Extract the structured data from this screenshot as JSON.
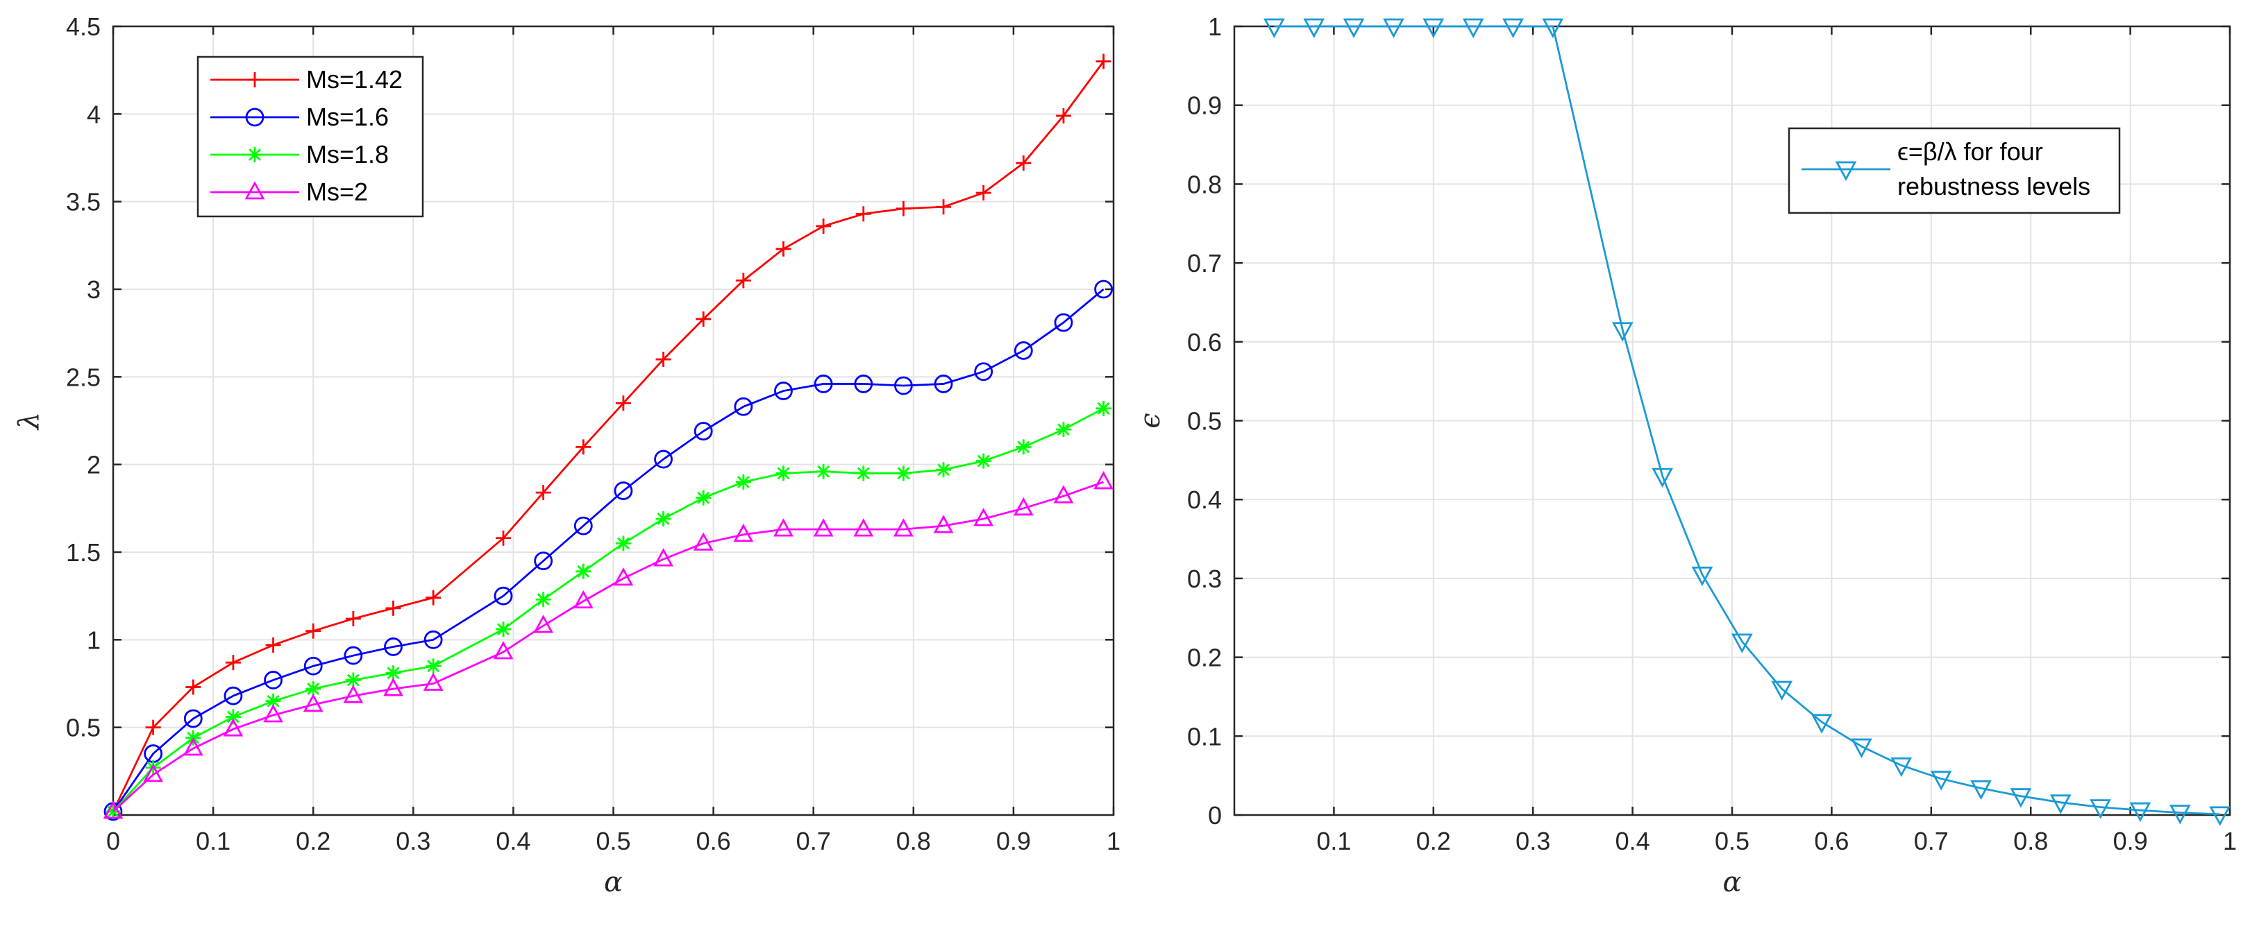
{
  "chart_data": [
    {
      "type": "line",
      "xlabel": "α",
      "ylabel": "λ",
      "xlim": [
        0,
        1
      ],
      "ylim": [
        0,
        4.5
      ],
      "xticks": [
        "0",
        "0.1",
        "0.2",
        "0.3",
        "0.4",
        "0.5",
        "0.6",
        "0.7",
        "0.8",
        "0.9",
        "1"
      ],
      "yticks": [
        "0.5",
        "1",
        "1.5",
        "2",
        "2.5",
        "3",
        "3.5",
        "4",
        "4.5"
      ],
      "grid": true,
      "legend_position": "top-left",
      "x": [
        0,
        0.04,
        0.08,
        0.12,
        0.16,
        0.2,
        0.24,
        0.28,
        0.32,
        0.39,
        0.43,
        0.47,
        0.51,
        0.55,
        0.59,
        0.63,
        0.67,
        0.71,
        0.75,
        0.79,
        0.83,
        0.87,
        0.91,
        0.95,
        0.99
      ],
      "series": [
        {
          "name": "Ms=1.42",
          "color": "#ff0000",
          "marker": "plus",
          "values": [
            0.02,
            0.5,
            0.73,
            0.87,
            0.97,
            1.05,
            1.12,
            1.18,
            1.24,
            1.58,
            1.84,
            2.1,
            2.35,
            2.6,
            2.83,
            3.05,
            3.23,
            3.36,
            3.43,
            3.46,
            3.47,
            3.55,
            3.72,
            3.99,
            4.3
          ]
        },
        {
          "name": "Ms=1.6",
          "color": "#0000ff",
          "marker": "circle",
          "values": [
            0.02,
            0.35,
            0.55,
            0.68,
            0.77,
            0.85,
            0.91,
            0.96,
            1.0,
            1.25,
            1.45,
            1.65,
            1.85,
            2.03,
            2.19,
            2.33,
            2.42,
            2.46,
            2.46,
            2.45,
            2.46,
            2.53,
            2.65,
            2.81,
            3.0
          ]
        },
        {
          "name": "Ms=1.8",
          "color": "#00ff00",
          "marker": "asterisk",
          "values": [
            0.02,
            0.27,
            0.44,
            0.56,
            0.65,
            0.72,
            0.77,
            0.81,
            0.85,
            1.06,
            1.23,
            1.39,
            1.55,
            1.69,
            1.81,
            1.9,
            1.95,
            1.96,
            1.95,
            1.95,
            1.97,
            2.02,
            2.1,
            2.2,
            2.32
          ]
        },
        {
          "name": "Ms=2",
          "color": "#ff00ff",
          "marker": "triangle-up",
          "values": [
            0.02,
            0.23,
            0.38,
            0.49,
            0.57,
            0.63,
            0.68,
            0.72,
            0.75,
            0.93,
            1.08,
            1.22,
            1.35,
            1.46,
            1.55,
            1.6,
            1.63,
            1.63,
            1.63,
            1.63,
            1.65,
            1.69,
            1.75,
            1.82,
            1.9
          ]
        }
      ]
    },
    {
      "type": "line",
      "xlabel": "α",
      "ylabel": "ϵ",
      "xlim": [
        0,
        1
      ],
      "ylim": [
        0,
        1
      ],
      "xticks": [
        "0.1",
        "0.2",
        "0.3",
        "0.4",
        "0.5",
        "0.6",
        "0.7",
        "0.8",
        "0.9",
        "1"
      ],
      "yticks": [
        "0",
        "0.1",
        "0.2",
        "0.3",
        "0.4",
        "0.5",
        "0.6",
        "0.7",
        "0.8",
        "0.9",
        "1"
      ],
      "grid": true,
      "legend_position": "top-right",
      "x": [
        0.04,
        0.08,
        0.12,
        0.16,
        0.2,
        0.24,
        0.28,
        0.32,
        0.39,
        0.43,
        0.47,
        0.51,
        0.55,
        0.59,
        0.63,
        0.67,
        0.71,
        0.75,
        0.79,
        0.83,
        0.87,
        0.91,
        0.95,
        0.99
      ],
      "series": [
        {
          "name": "ϵ=β/λ for four rebustness levels",
          "legend_lines": [
            "ϵ=β/λ for four",
            "rebustness levels"
          ],
          "color": "#1a9ad6",
          "marker": "triangle-down",
          "values": [
            1,
            1,
            1,
            1,
            1,
            1,
            1,
            1,
            0.615,
            0.43,
            0.305,
            0.22,
            0.16,
            0.118,
            0.087,
            0.063,
            0.046,
            0.034,
            0.024,
            0.016,
            0.01,
            0.006,
            0.003,
            0.001
          ]
        }
      ]
    }
  ]
}
